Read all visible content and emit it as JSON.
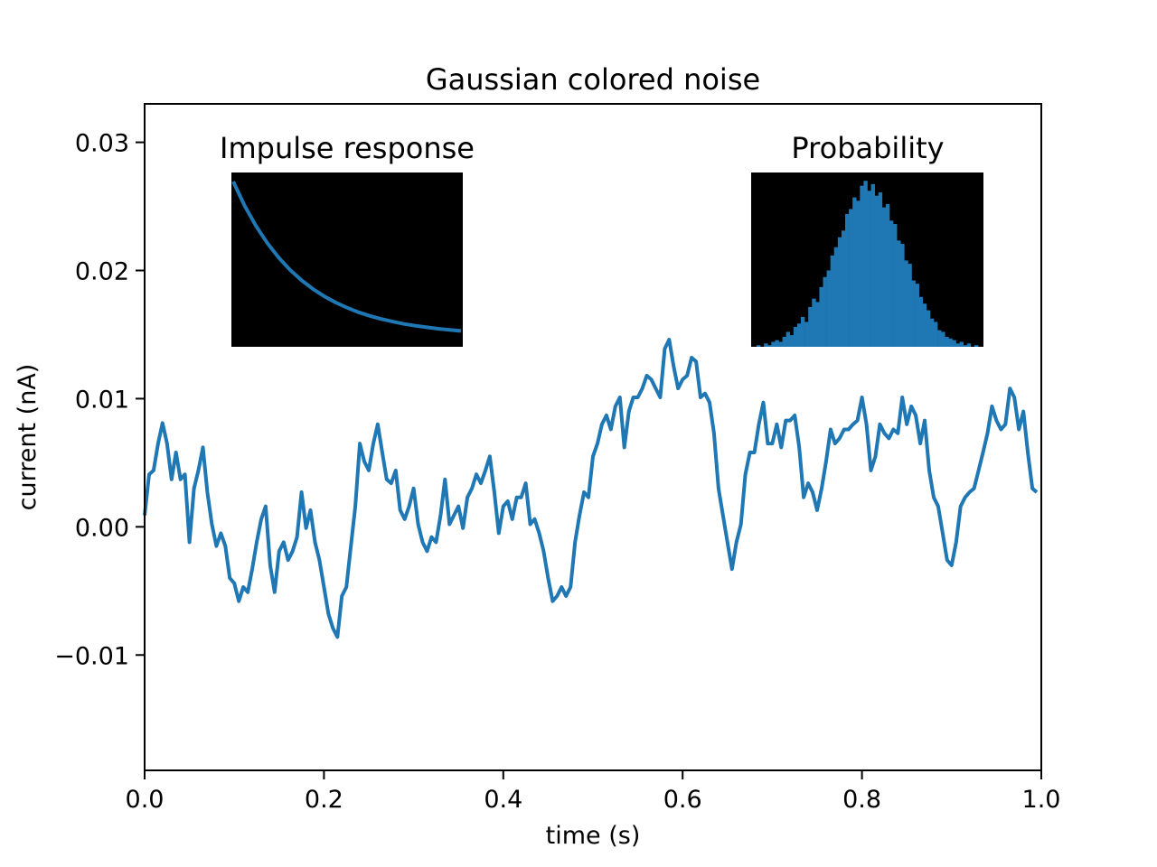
{
  "chart_data": [
    {
      "type": "line",
      "title": "Gaussian colored noise",
      "xlabel": "time (s)",
      "ylabel": "current (nA)",
      "xlim": [
        0,
        1.0
      ],
      "ylim": [
        -0.019,
        0.033
      ],
      "xticks": [
        0.0,
        0.2,
        0.4,
        0.6,
        0.8,
        1.0
      ],
      "xtick_labels": [
        "0.0",
        "0.2",
        "0.4",
        "0.6",
        "0.8",
        "1.0"
      ],
      "yticks": [
        -0.01,
        0.0,
        0.01,
        0.02,
        0.03
      ],
      "ytick_labels": [
        "−0.01",
        "0.00",
        "0.01",
        "0.02",
        "0.03"
      ],
      "grid": false,
      "color": "#1f77b4",
      "x_start": 0.0,
      "x_step": 0.005,
      "values": [
        0.0009,
        0.0041,
        0.0044,
        0.0065,
        0.0081,
        0.0065,
        0.0037,
        0.0058,
        0.0037,
        0.0041,
        -0.0012,
        0.003,
        0.0044,
        0.0062,
        0.0027,
        0.0002,
        -0.0015,
        -0.0005,
        -0.0015,
        -0.004,
        -0.0044,
        -0.0058,
        -0.0047,
        -0.0051,
        -0.0033,
        -0.0012,
        0.0006,
        0.0016,
        -0.003,
        -0.0051,
        -0.0019,
        -0.0012,
        -0.0026,
        -0.0019,
        -0.0008,
        0.0027,
        -0.0001,
        0.0013,
        -0.0012,
        -0.0026,
        -0.0047,
        -0.0068,
        -0.0079,
        -0.0086,
        -0.0054,
        -0.0047,
        -0.0015,
        0.0016,
        0.0065,
        0.0051,
        0.0044,
        0.0065,
        0.008,
        0.0058,
        0.0037,
        0.0034,
        0.0044,
        0.0013,
        0.0006,
        0.0016,
        0.003,
        0.0002,
        -0.0012,
        -0.0019,
        -0.0008,
        -0.0012,
        0.0009,
        0.0037,
        0.0002,
        0.0009,
        0.0016,
        -0.0001,
        0.0023,
        0.003,
        0.0041,
        0.0034,
        0.0044,
        0.0055,
        0.0027,
        -0.0005,
        0.0016,
        0.002,
        0.0006,
        0.0023,
        0.0023,
        0.0034,
        0.0002,
        0.0006,
        -0.0005,
        -0.0019,
        -0.004,
        -0.0058,
        -0.0054,
        -0.0047,
        -0.0054,
        -0.0047,
        -0.0012,
        0.0009,
        0.0027,
        0.0023,
        0.0055,
        0.0065,
        0.008,
        0.0087,
        0.0076,
        0.0094,
        0.0101,
        0.0062,
        0.009,
        0.0101,
        0.0101,
        0.0108,
        0.0118,
        0.0115,
        0.0108,
        0.0101,
        0.0139,
        0.0146,
        0.0125,
        0.0108,
        0.0115,
        0.0118,
        0.0132,
        0.0129,
        0.0101,
        0.0104,
        0.0097,
        0.0073,
        0.003,
        0.0009,
        -0.0012,
        -0.0033,
        -0.0012,
        0.0002,
        0.0041,
        0.0058,
        0.0058,
        0.008,
        0.0097,
        0.0065,
        0.0065,
        0.008,
        0.0062,
        0.0083,
        0.0083,
        0.0087,
        0.0062,
        0.0023,
        0.0034,
        0.0027,
        0.0013,
        0.003,
        0.0051,
        0.0076,
        0.0065,
        0.0069,
        0.0076,
        0.0076,
        0.008,
        0.0083,
        0.0101,
        0.008,
        0.0044,
        0.0055,
        0.008,
        0.0073,
        0.0069,
        0.0076,
        0.0073,
        0.0101,
        0.008,
        0.0094,
        0.0087,
        0.0065,
        0.0083,
        0.0044,
        0.0023,
        0.0016,
        -0.0005,
        -0.0026,
        -0.003,
        -0.0012,
        0.0016,
        0.0023,
        0.0027,
        0.003,
        0.0044,
        0.0058,
        0.0073,
        0.0094,
        0.0083,
        0.0076,
        0.008,
        0.0108,
        0.0101,
        0.0076,
        0.009,
        0.0058,
        0.003,
        0.0027
      ]
    },
    {
      "type": "line",
      "title": "Impulse response",
      "background": "#000000",
      "color": "#1f77b4",
      "ticks": false,
      "values": [
        1.0,
        0.844,
        0.712,
        0.601,
        0.507,
        0.427,
        0.361,
        0.304,
        0.257,
        0.217,
        0.183,
        0.154,
        0.13,
        0.11,
        0.093,
        0.078,
        0.066,
        0.056,
        0.047,
        0.04,
        0.033
      ]
    },
    {
      "type": "bar",
      "title": "Probability",
      "background": "#000000",
      "color": "#1f77b4",
      "ticks": false,
      "values": [
        1,
        0,
        2,
        1,
        3,
        4,
        3,
        6,
        9,
        7,
        12,
        14,
        18,
        15,
        24,
        29,
        27,
        36,
        42,
        46,
        55,
        60,
        66,
        70,
        80,
        83,
        90,
        88,
        97,
        100,
        94,
        98,
        91,
        93,
        84,
        86,
        76,
        74,
        64,
        62,
        52,
        50,
        40,
        38,
        30,
        26,
        22,
        17,
        15,
        10,
        9,
        6,
        5,
        4,
        2,
        3,
        1,
        2,
        0,
        1
      ]
    }
  ]
}
